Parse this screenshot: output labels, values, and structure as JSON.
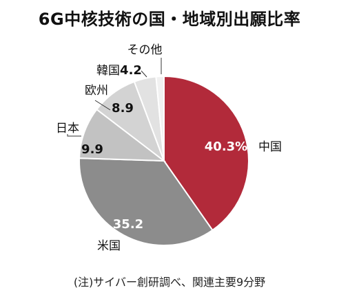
{
  "title": "6G中核技術の国・地域別出願比率",
  "note": "(注)サイバー創研調べ、関連主要9分野",
  "chart_data": {
    "type": "pie",
    "title": "6G中核技術の国・地域別出願比率",
    "slices": [
      {
        "name": "中国",
        "value": 40.3,
        "value_label": "40.3%",
        "color": "#b22a3a"
      },
      {
        "name": "米国",
        "value": 35.2,
        "value_label": "35.2",
        "color": "#8c8c8c"
      },
      {
        "name": "日本",
        "value": 9.9,
        "value_label": "9.9",
        "color": "#c2c2c2"
      },
      {
        "name": "欧州",
        "value": 8.9,
        "value_label": "8.9",
        "color": "#d3d3d3"
      },
      {
        "name": "韓国",
        "value": 4.2,
        "value_label": "4.2",
        "color": "#e2e2e2"
      },
      {
        "name": "その他",
        "value": 1.5,
        "value_label": "",
        "color": "#f1f1f1"
      }
    ],
    "legend": "none"
  }
}
